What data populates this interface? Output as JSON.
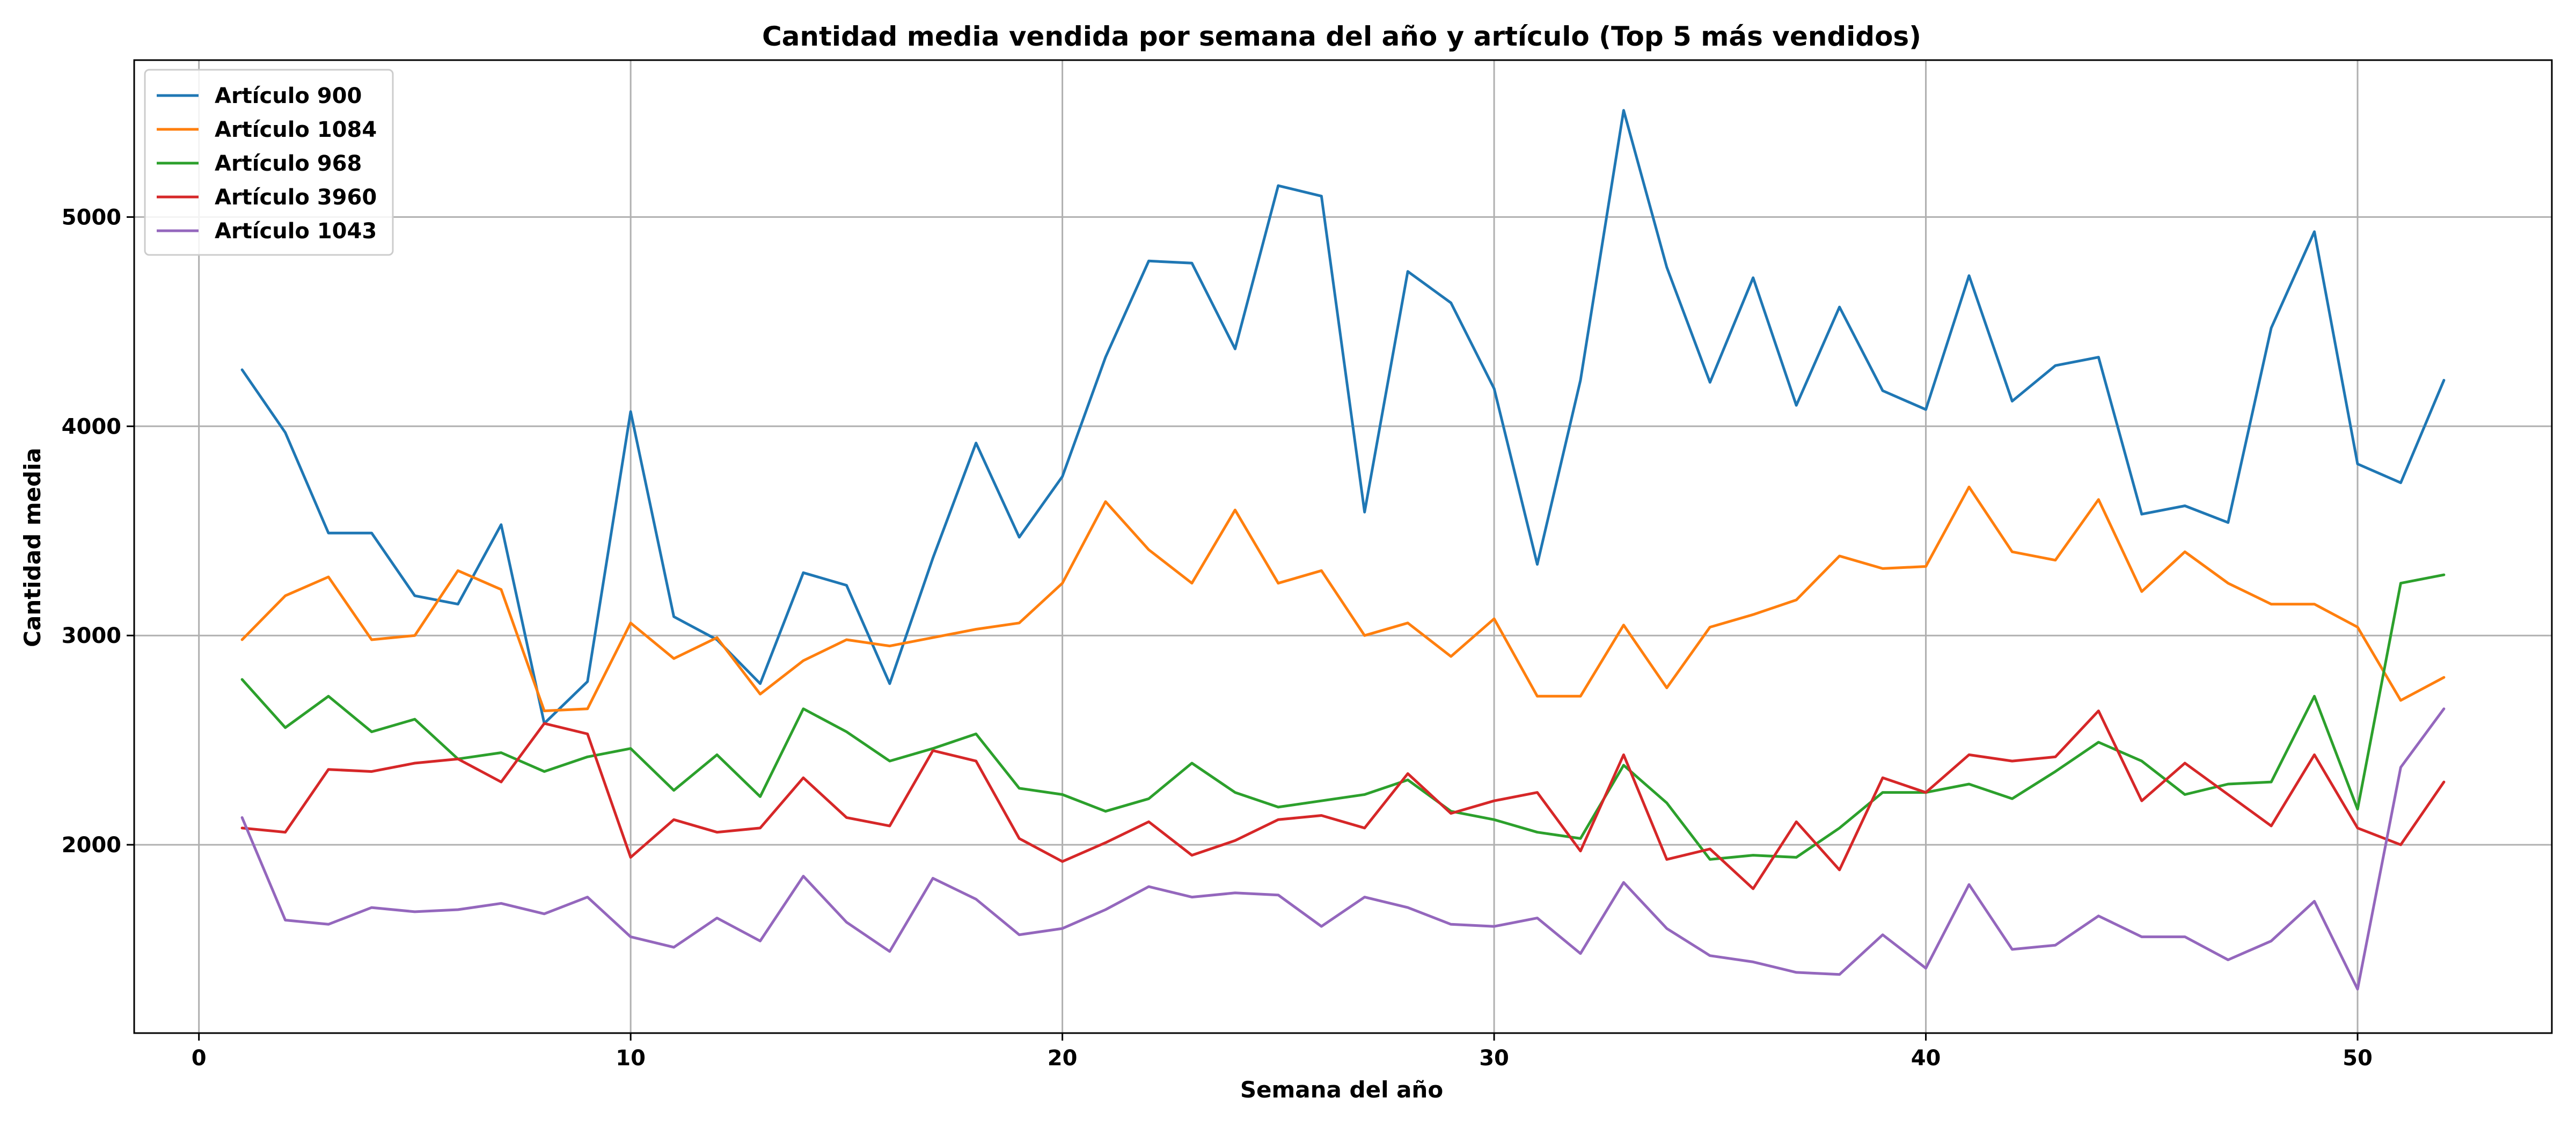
{
  "chart_data": {
    "type": "line",
    "title": "Cantidad media vendida por semana del año y artículo (Top 5 más vendidos)",
    "xlabel": "Semana del año",
    "ylabel": "Cantidad media",
    "xlim": [
      -1.5,
      54.5
    ],
    "ylim": [
      1100,
      5750
    ],
    "xticks": [
      0,
      10,
      20,
      30,
      40,
      50
    ],
    "yticks": [
      2000,
      3000,
      4000,
      5000
    ],
    "grid": true,
    "legend_position": "top-left",
    "x": [
      1,
      2,
      3,
      4,
      5,
      6,
      7,
      8,
      9,
      10,
      11,
      12,
      13,
      14,
      15,
      16,
      17,
      18,
      19,
      20,
      21,
      22,
      23,
      24,
      25,
      26,
      27,
      28,
      29,
      30,
      31,
      32,
      33,
      34,
      35,
      36,
      37,
      38,
      39,
      40,
      41,
      42,
      43,
      44,
      45,
      46,
      47,
      48,
      49,
      50,
      51,
      52
    ],
    "series": [
      {
        "name": "Artículo 900",
        "color": "#1f77b4",
        "values": [
          4270,
          3970,
          3490,
          3490,
          3190,
          3150,
          3530,
          2580,
          2780,
          4070,
          3090,
          2980,
          2770,
          3300,
          3240,
          2770,
          3370,
          3920,
          3470,
          3760,
          4330,
          4790,
          4780,
          4370,
          5150,
          5100,
          3590,
          4740,
          4590,
          4180,
          3340,
          4220,
          5510,
          4760,
          4210,
          4710,
          4100,
          4570,
          4170,
          4080,
          4720,
          4120,
          4290,
          4330,
          3580,
          3620,
          3540,
          4470,
          4930,
          3820,
          3730,
          4220
        ]
      },
      {
        "name": "Artículo 1084",
        "color": "#ff7f0e",
        "values": [
          2980,
          3190,
          3280,
          2980,
          3000,
          3310,
          3220,
          2640,
          2650,
          3060,
          2890,
          2990,
          2720,
          2880,
          2980,
          2950,
          2990,
          3030,
          3060,
          3250,
          3640,
          3410,
          3250,
          3600,
          3250,
          3310,
          3000,
          3060,
          2900,
          3080,
          2710,
          2710,
          3050,
          2750,
          3040,
          3100,
          3170,
          3380,
          3320,
          3330,
          3710,
          3400,
          3360,
          3650,
          3210,
          3400,
          3250,
          3150,
          3150,
          3040,
          2690,
          2800
        ]
      },
      {
        "name": "Artículo 968",
        "color": "#2ca02c",
        "values": [
          2790,
          2560,
          2710,
          2540,
          2600,
          2410,
          2440,
          2350,
          2420,
          2460,
          2260,
          2430,
          2230,
          2650,
          2540,
          2400,
          2460,
          2530,
          2270,
          2240,
          2160,
          2220,
          2390,
          2250,
          2180,
          2210,
          2240,
          2310,
          2160,
          2120,
          2060,
          2030,
          2380,
          2200,
          1930,
          1950,
          1940,
          2080,
          2250,
          2250,
          2290,
          2220,
          2350,
          2490,
          2400,
          2240,
          2290,
          2300,
          2710,
          2170,
          3250,
          3290
        ]
      },
      {
        "name": "Artículo 3960",
        "color": "#d62728",
        "values": [
          2080,
          2060,
          2360,
          2350,
          2390,
          2410,
          2300,
          2580,
          2530,
          1940,
          2120,
          2060,
          2080,
          2320,
          2130,
          2090,
          2450,
          2400,
          2030,
          1920,
          2010,
          2110,
          1950,
          2020,
          2120,
          2140,
          2080,
          2340,
          2150,
          2210,
          2250,
          1970,
          2430,
          1930,
          1980,
          1790,
          2110,
          1880,
          2320,
          2250,
          2430,
          2400,
          2420,
          2640,
          2210,
          2390,
          2240,
          2090,
          2430,
          2080,
          2000,
          2300
        ]
      },
      {
        "name": "Artículo 1043",
        "color": "#9467bd",
        "values": [
          2130,
          1640,
          1620,
          1700,
          1680,
          1690,
          1720,
          1670,
          1750,
          1560,
          1510,
          1650,
          1540,
          1850,
          1630,
          1490,
          1840,
          1740,
          1570,
          1600,
          1690,
          1800,
          1750,
          1770,
          1760,
          1610,
          1750,
          1700,
          1620,
          1610,
          1650,
          1480,
          1820,
          1600,
          1470,
          1440,
          1390,
          1380,
          1570,
          1410,
          1810,
          1500,
          1520,
          1660,
          1560,
          1560,
          1450,
          1540,
          1730,
          1310,
          2370,
          2650
        ]
      }
    ]
  }
}
